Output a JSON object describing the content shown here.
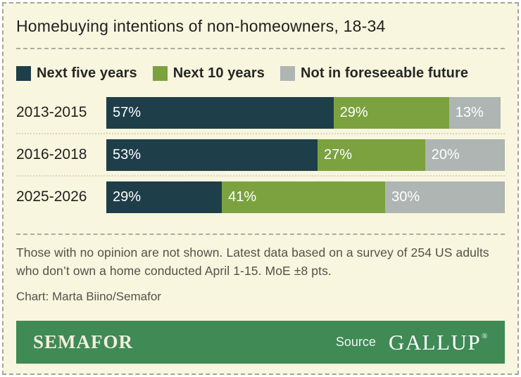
{
  "title": "Homebuying intentions of non-homeowners, 18-34",
  "chart_data": {
    "type": "bar",
    "stacked": true,
    "orientation": "horizontal",
    "categories": [
      "2013-2015",
      "2016-2018",
      "2025-2026"
    ],
    "series": [
      {
        "name": "Next five years",
        "color": "#1e3e49",
        "values": [
          57,
          53,
          29
        ]
      },
      {
        "name": "Next 10 years",
        "color": "#7ba23f",
        "values": [
          29,
          27,
          41
        ]
      },
      {
        "name": "Not in foreseeable future",
        "color": "#aeb5b2",
        "values": [
          13,
          20,
          30
        ]
      }
    ],
    "value_suffix": "%",
    "xlim": [
      0,
      100
    ],
    "value_label_position": "inside-start",
    "legend_position": "top",
    "grid": false
  },
  "notes": {
    "body": "Those with no opinion are not shown. Latest data based on a survey of 254 US adults who don’t own a home conducted April 1-15. MoE ±8 pts.",
    "credit": "Chart: Marta Biino/Semafor"
  },
  "footer": {
    "brand": "SEMAFOR",
    "source_label": "Source",
    "source_name": "GALLUP",
    "registered_mark": "®",
    "background": "#3f8a55"
  },
  "colors": {
    "background": "#f8f6de",
    "title_text": "#1f1f1f",
    "notes_text": "#52524b",
    "bar_value_text": "#ffffff",
    "dashed_divider": "#aeac9e",
    "dotted_divider": "#d9d5bf",
    "outer_border": "#a6a49a"
  }
}
